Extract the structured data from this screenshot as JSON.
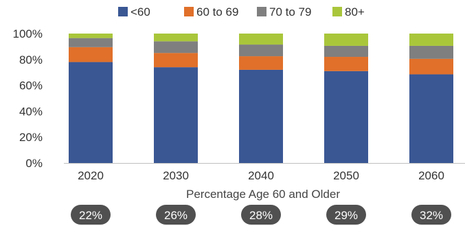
{
  "chart_data": {
    "type": "bar",
    "stacked": true,
    "categories": [
      "2020",
      "2030",
      "2040",
      "2050",
      "2060"
    ],
    "series": [
      {
        "name": "<60",
        "color": "#3a5794",
        "values": [
          78,
          74,
          72,
          71,
          68.5
        ]
      },
      {
        "name": "60 to 69",
        "color": "#e0702a",
        "values": [
          11.5,
          11,
          10.5,
          11,
          12
        ]
      },
      {
        "name": "70 to 79",
        "color": "#7f7f7f",
        "values": [
          7,
          9,
          9,
          8.5,
          10
        ]
      },
      {
        "name": "80+",
        "color": "#a9c63b",
        "values": [
          3.5,
          6,
          8.5,
          9.5,
          9.5
        ]
      }
    ],
    "ylim": [
      0,
      100
    ],
    "yticks": [
      "0%",
      "20%",
      "40%",
      "60%",
      "80%",
      "100%"
    ],
    "xlabel": "Percentage Age 60 and Older",
    "ylabel": "",
    "legend_position": "top",
    "grid": false,
    "annotations": [
      "22%",
      "26%",
      "28%",
      "29%",
      "32%"
    ],
    "annotation_color": "#505050"
  }
}
